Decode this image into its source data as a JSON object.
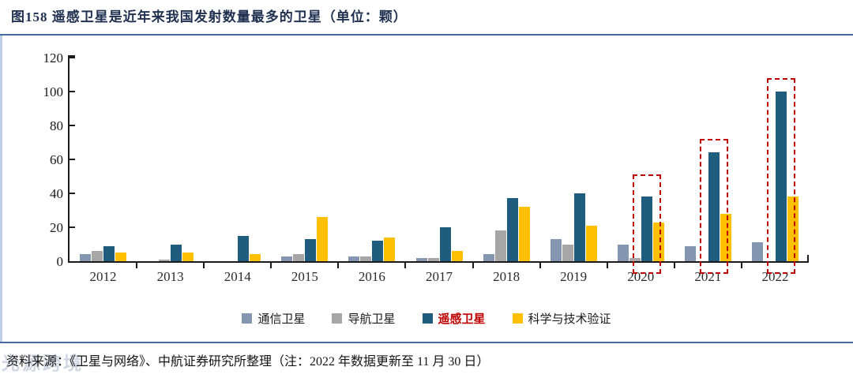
{
  "figure": {
    "title": "图158  遥感卫星是近年来我国发射数量最多的卫星（单位：颗）",
    "source_note": "资料来源：《卫星与网络》、中航证券研究所整理（注：2022 年数据更新至 11 月 30 日）",
    "watermark": "光源跨境"
  },
  "colors": {
    "title": "#1f3050",
    "divider_blue": "#44699d",
    "axis": "#1a1a1a",
    "highlight_red": "#c00000",
    "series_communication": "#8496b0",
    "series_navigation": "#a6a6a6",
    "series_remote_sensing": "#1f5c7d",
    "series_science": "#ffc000"
  },
  "chart_data": {
    "type": "bar",
    "title": "图158 遥感卫星是近年来我国发射数量最多的卫星（单位：颗）",
    "categories": [
      "2012",
      "2013",
      "2014",
      "2015",
      "2016",
      "2017",
      "2018",
      "2019",
      "2020",
      "2021",
      "2022"
    ],
    "series": [
      {
        "name": "通信卫星",
        "color": "#8496b0",
        "values": [
          4,
          0,
          0,
          3,
          3,
          2,
          4,
          13,
          10,
          9,
          11
        ]
      },
      {
        "name": "导航卫星",
        "color": "#a6a6a6",
        "values": [
          6,
          1,
          0,
          4,
          3,
          2,
          18,
          10,
          2,
          0,
          0
        ]
      },
      {
        "name": "遥感卫星",
        "color": "#1f5c7d",
        "highlighted": true,
        "values": [
          9,
          10,
          15,
          13,
          12,
          20,
          37,
          40,
          38,
          64,
          100
        ]
      },
      {
        "name": "科学与技术验证",
        "color": "#ffc000",
        "values": [
          5,
          5,
          4,
          26,
          14,
          6,
          32,
          21,
          23,
          28,
          38
        ]
      }
    ],
    "xlabel": "",
    "ylabel": "",
    "ylim": [
      0,
      120
    ],
    "yticks": [
      0,
      20,
      40,
      60,
      80,
      100,
      120
    ],
    "grid": false,
    "legend_position": "bottom",
    "annotations": {
      "highlight_boxes": [
        {
          "category": "2020",
          "series": "遥感卫星",
          "box_top_value": 51
        },
        {
          "category": "2021",
          "series": "遥感卫星",
          "box_top_value": 72
        },
        {
          "category": "2022",
          "series": "遥感卫星",
          "box_top_value": 108
        }
      ],
      "highlight_style": "red dashed rectangle around 遥感卫星 bar"
    }
  }
}
